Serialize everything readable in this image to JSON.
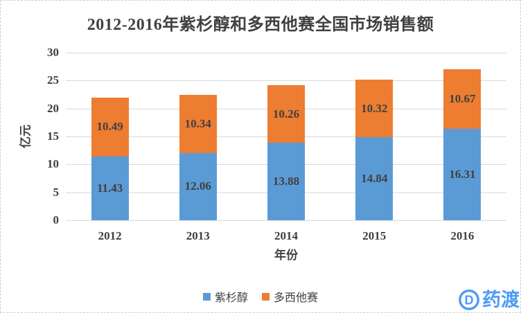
{
  "title": "2012-2016年紫杉醇和多西他赛全国市场销售额",
  "chart_data": {
    "type": "bar",
    "stacked": true,
    "categories": [
      "2012",
      "2013",
      "2014",
      "2015",
      "2016"
    ],
    "series": [
      {
        "name": "紫杉醇",
        "color": "#5B9BD5",
        "values": [
          11.43,
          12.06,
          13.88,
          14.84,
          16.31
        ]
      },
      {
        "name": "多西他赛",
        "color": "#ED7D31",
        "values": [
          10.49,
          10.34,
          10.26,
          10.32,
          10.67
        ]
      }
    ],
    "xlabel": "年份",
    "ylabel": "亿元",
    "ylim": [
      0,
      30
    ],
    "yticks": [
      0,
      5,
      10,
      15,
      20,
      25,
      30
    ],
    "grid": true,
    "gridline_color": "#d9d9d9",
    "label_color": "#404040",
    "legend_position": "bottom",
    "data_labels": "center"
  },
  "watermark": {
    "brand": "药渡",
    "icon_letter": "D",
    "color": "#4C9BF5"
  }
}
